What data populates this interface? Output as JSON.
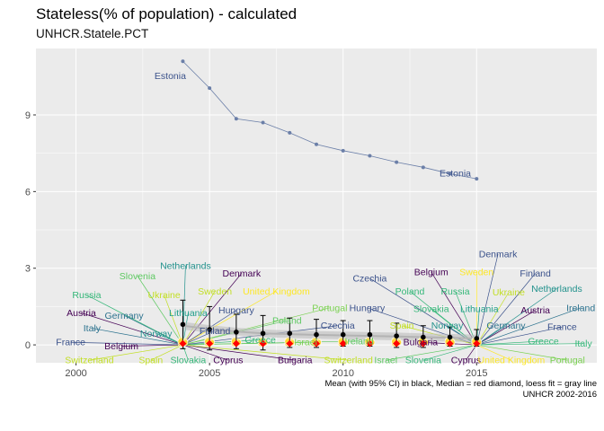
{
  "header": {
    "title": "Stateless(% of population) - calculated",
    "subtitle": "UNHCR.Statele.PCT"
  },
  "caption": {
    "line1": "Mean (with 95% CI) in black, Median = red diamond, loess fit = gray line",
    "line2": "UNHCR 2002-2016"
  },
  "colors": {
    "panel": "#ebebeb",
    "grid": "#ffffff",
    "mean": "#000000",
    "median": "#ff0000",
    "loess": "#b3b3b3",
    "estonia_line": "#6b7fa8",
    "dot_fill": "#ffd42a"
  },
  "chart_data": {
    "type": "line",
    "x_ticks": [
      2000,
      2005,
      2010,
      2015
    ],
    "y_ticks": [
      0,
      3,
      6,
      9
    ],
    "xlim": [
      1998.5,
      2019.5
    ],
    "ylim": [
      -0.7,
      11.6
    ],
    "grid": true,
    "estonia": {
      "name": "Estonia",
      "x": [
        2004,
        2005,
        2006,
        2007,
        2008,
        2009,
        2010,
        2011,
        2012,
        2013,
        2014,
        2015
      ],
      "y": [
        11.1,
        10.05,
        8.85,
        8.7,
        8.3,
        7.85,
        7.6,
        7.4,
        7.15,
        6.95,
        6.7,
        6.5
      ]
    },
    "mean": {
      "x": [
        2004,
        2005,
        2006,
        2007,
        2008,
        2009,
        2010,
        2011,
        2012,
        2013,
        2014,
        2015
      ],
      "y": [
        0.8,
        0.6,
        0.5,
        0.45,
        0.45,
        0.4,
        0.4,
        0.4,
        0.35,
        0.3,
        0.3,
        0.25
      ],
      "lo": [
        -0.15,
        -0.2,
        -0.15,
        -0.2,
        -0.1,
        -0.1,
        -0.05,
        -0.05,
        -0.1,
        -0.1,
        -0.05,
        -0.05
      ],
      "hi": [
        1.75,
        1.5,
        1.2,
        1.15,
        1.05,
        1.0,
        0.95,
        0.95,
        0.85,
        0.75,
        0.7,
        0.6
      ]
    },
    "median": {
      "x": [
        2004,
        2005,
        2006,
        2007,
        2008,
        2009,
        2010,
        2011,
        2012,
        2013,
        2014,
        2015
      ],
      "y": [
        0.05,
        0.05,
        0.05,
        0.05,
        0.05,
        0.05,
        0.05,
        0.05,
        0.05,
        0.05,
        0.05,
        0.05
      ]
    },
    "loess": {
      "x": [
        2004,
        2005,
        2006,
        2007,
        2008,
        2009,
        2010,
        2011,
        2012,
        2013,
        2014,
        2015
      ],
      "y": [
        0.75,
        0.62,
        0.52,
        0.45,
        0.42,
        0.39,
        0.37,
        0.35,
        0.33,
        0.3,
        0.28,
        0.25
      ]
    },
    "labels_2004": [
      {
        "text": "Austria",
        "color": "#440154",
        "lx": 2000.2,
        "ly": 1.25
      },
      {
        "text": "France",
        "color": "#3b528b",
        "lx": 1999.8,
        "ly": 0.1
      },
      {
        "text": "Italy",
        "color": "#2c728e",
        "lx": 2000.6,
        "ly": 0.65
      },
      {
        "text": "Germany",
        "color": "#2c728e",
        "lx": 2001.8,
        "ly": 1.15
      },
      {
        "text": "Russia",
        "color": "#35b779",
        "lx": 2000.4,
        "ly": 1.95
      },
      {
        "text": "Slovenia",
        "color": "#5ec962",
        "lx": 2002.3,
        "ly": 2.7
      },
      {
        "text": "Netherlands",
        "color": "#21918c",
        "lx": 2004.1,
        "ly": 3.1
      },
      {
        "text": "Ukraine",
        "color": "#c2df23",
        "lx": 2003.3,
        "ly": 1.95
      },
      {
        "text": "Lithuania",
        "color": "#1f9e89",
        "lx": 2004.2,
        "ly": 1.25
      },
      {
        "text": "Norway",
        "color": "#21918c",
        "lx": 2003.0,
        "ly": 0.45
      },
      {
        "text": "Belgium",
        "color": "#440154",
        "lx": 2001.7,
        "ly": -0.05
      },
      {
        "text": "Switzerland",
        "color": "#c2df23",
        "lx": 2000.5,
        "ly": -0.6
      },
      {
        "text": "Spain",
        "color": "#c2df23",
        "lx": 2002.8,
        "ly": -0.6
      },
      {
        "text": "Slovakia",
        "color": "#35b779",
        "lx": 2004.2,
        "ly": -0.6
      },
      {
        "text": "Sweden",
        "color": "#c2df23",
        "lx": 2005.2,
        "ly": 2.1
      },
      {
        "text": "Finland",
        "color": "#3b528b",
        "lx": 2005.2,
        "ly": 0.55
      },
      {
        "text": "Cyprus",
        "color": "#440154",
        "lx": 2005.7,
        "ly": -0.6
      },
      {
        "text": "Denmark",
        "color": "#440154",
        "lx": 2006.2,
        "ly": 2.8
      },
      {
        "text": "United Kingdom",
        "color": "#fde725",
        "lx": 2007.5,
        "ly": 2.1
      },
      {
        "text": "Hungary",
        "color": "#3b528b",
        "lx": 2006.0,
        "ly": 1.35
      },
      {
        "text": "Greece",
        "color": "#35b779",
        "lx": 2006.9,
        "ly": 0.2
      },
      {
        "text": "Poland",
        "color": "#5ec962",
        "lx": 2007.9,
        "ly": 0.95
      },
      {
        "text": "Israel",
        "color": "#7ad151",
        "lx": 2008.6,
        "ly": 0.1
      },
      {
        "text": "Portugal",
        "color": "#7ad151",
        "lx": 2009.5,
        "ly": 1.45
      },
      {
        "text": "Czechia",
        "color": "#3b528b",
        "lx": 2009.8,
        "ly": 0.75
      },
      {
        "text": "Ireland",
        "color": "#5ec962",
        "lx": 2010.6,
        "ly": 0.15
      },
      {
        "text": "Bulgaria",
        "color": "#440154",
        "lx": 2008.2,
        "ly": -0.6
      },
      {
        "text": "Switzerland",
        "color": "#c2df23",
        "lx": 2010.2,
        "ly": -0.6
      }
    ],
    "labels_2015": [
      {
        "text": "Denmark",
        "color": "#3b528b",
        "lx": 2015.8,
        "ly": 3.55
      },
      {
        "text": "Czechia",
        "color": "#3b528b",
        "lx": 2011.0,
        "ly": 2.6
      },
      {
        "text": "Belgium",
        "color": "#440154",
        "lx": 2013.3,
        "ly": 2.85
      },
      {
        "text": "Sweden",
        "color": "#fde725",
        "lx": 2015.0,
        "ly": 2.85
      },
      {
        "text": "Finland",
        "color": "#3b528b",
        "lx": 2017.2,
        "ly": 2.8
      },
      {
        "text": "Poland",
        "color": "#35b779",
        "lx": 2012.5,
        "ly": 2.1
      },
      {
        "text": "Russia",
        "color": "#35b779",
        "lx": 2014.2,
        "ly": 2.1
      },
      {
        "text": "Ukraine",
        "color": "#c2df23",
        "lx": 2016.2,
        "ly": 2.05
      },
      {
        "text": "Netherlands",
        "color": "#21918c",
        "lx": 2018.0,
        "ly": 2.2
      },
      {
        "text": "Hungary",
        "color": "#3b528b",
        "lx": 2010.9,
        "ly": 1.45
      },
      {
        "text": "Slovakia",
        "color": "#35b779",
        "lx": 2013.3,
        "ly": 1.4
      },
      {
        "text": "Lithuania",
        "color": "#1f9e89",
        "lx": 2015.1,
        "ly": 1.4
      },
      {
        "text": "Austria",
        "color": "#440154",
        "lx": 2017.2,
        "ly": 1.35
      },
      {
        "text": "Ireland",
        "color": "#2c728e",
        "lx": 2018.9,
        "ly": 1.45
      },
      {
        "text": "Spain",
        "color": "#c2df23",
        "lx": 2012.2,
        "ly": 0.75
      },
      {
        "text": "Norway",
        "color": "#21918c",
        "lx": 2013.9,
        "ly": 0.75
      },
      {
        "text": "Germany",
        "color": "#2c728e",
        "lx": 2016.1,
        "ly": 0.75
      },
      {
        "text": "France",
        "color": "#3b528b",
        "lx": 2018.2,
        "ly": 0.7
      },
      {
        "text": "Bulgaria",
        "color": "#440154",
        "lx": 2012.9,
        "ly": 0.1
      },
      {
        "text": "Greece",
        "color": "#35b779",
        "lx": 2017.5,
        "ly": 0.15
      },
      {
        "text": "Italy",
        "color": "#35b779",
        "lx": 2019.0,
        "ly": 0.05
      },
      {
        "text": "Israel",
        "color": "#5ec962",
        "lx": 2011.6,
        "ly": -0.6
      },
      {
        "text": "Slovenia",
        "color": "#35b779",
        "lx": 2013.0,
        "ly": -0.6
      },
      {
        "text": "Cyprus",
        "color": "#440154",
        "lx": 2014.6,
        "ly": -0.6
      },
      {
        "text": "United Kingdom",
        "color": "#fde725",
        "lx": 2016.3,
        "ly": -0.6
      },
      {
        "text": "Portugal",
        "color": "#7ad151",
        "lx": 2018.4,
        "ly": -0.6
      }
    ]
  }
}
